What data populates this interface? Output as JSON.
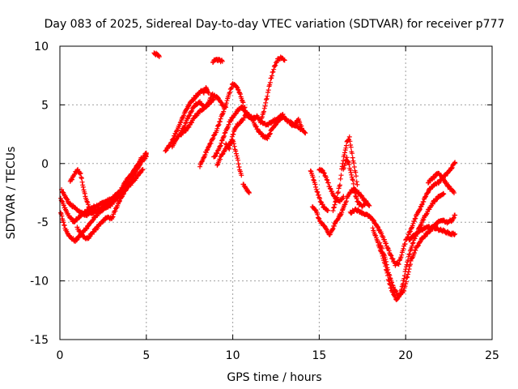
{
  "chart_data": {
    "type": "scatter",
    "title": "Day 083 of 2025, Sidereal Day-to-day VTEC variation (SDTVAR) for receiver p777",
    "xlabel": "GPS time / hours",
    "ylabel": "SDTVAR / TECUs",
    "xlim": [
      0,
      25
    ],
    "ylim": [
      -15,
      10
    ],
    "xticks": [
      0,
      5,
      10,
      15,
      20,
      25
    ],
    "yticks": [
      -15,
      -10,
      -5,
      0,
      5,
      10
    ],
    "xtick_labels": [
      "0",
      "5",
      "10",
      "15",
      "20",
      "25"
    ],
    "ytick_labels": [
      "-15",
      "-10",
      "-5",
      "0",
      "5",
      "10"
    ],
    "grid": true,
    "legend": "none",
    "marker": "+",
    "series_color": "#ff0000",
    "tracks": [
      {
        "name": "track-a",
        "points": [
          [
            0.05,
            -3.0
          ],
          [
            0.4,
            -4.2
          ],
          [
            0.8,
            -5.0
          ],
          [
            1.3,
            -4.3
          ],
          [
            1.8,
            -3.8
          ],
          [
            2.4,
            -3.4
          ],
          [
            3.0,
            -3.0
          ],
          [
            3.6,
            -2.2
          ],
          [
            4.1,
            -1.0
          ],
          [
            4.6,
            0.1
          ],
          [
            5.0,
            0.9
          ]
        ]
      },
      {
        "name": "track-b",
        "points": [
          [
            0.05,
            -4.2
          ],
          [
            0.3,
            -5.5
          ],
          [
            0.6,
            -6.3
          ],
          [
            0.9,
            -6.6
          ],
          [
            1.3,
            -5.9
          ],
          [
            1.8,
            -5.0
          ],
          [
            2.3,
            -4.1
          ],
          [
            2.9,
            -3.6
          ],
          [
            3.5,
            -2.6
          ],
          [
            4.0,
            -1.2
          ],
          [
            4.5,
            -0.2
          ],
          [
            5.0,
            0.6
          ]
        ]
      },
      {
        "name": "track-c",
        "points": [
          [
            0.1,
            -2.3
          ],
          [
            0.5,
            -3.3
          ],
          [
            1.0,
            -4.0
          ],
          [
            1.5,
            -4.4
          ],
          [
            2.0,
            -4.1
          ],
          [
            2.6,
            -3.7
          ],
          [
            3.1,
            -3.2
          ],
          [
            3.6,
            -2.5
          ],
          [
            4.2,
            -1.6
          ],
          [
            4.8,
            -0.5
          ]
        ]
      },
      {
        "name": "track-d",
        "points": [
          [
            0.6,
            -1.6
          ],
          [
            0.8,
            -1.0
          ],
          [
            1.0,
            -0.5
          ],
          [
            1.2,
            -0.9
          ],
          [
            1.35,
            -2.0
          ],
          [
            1.5,
            -3.0
          ],
          [
            1.8,
            -4.2
          ],
          [
            2.2,
            -4.0
          ],
          [
            2.8,
            -3.4
          ],
          [
            3.3,
            -2.8
          ],
          [
            3.9,
            -1.3
          ],
          [
            4.3,
            -0.8
          ],
          [
            4.7,
            0.5
          ]
        ]
      },
      {
        "name": "track-e",
        "points": [
          [
            1.0,
            -5.5
          ],
          [
            1.4,
            -6.3
          ],
          [
            1.6,
            -6.4
          ],
          [
            1.9,
            -5.9
          ],
          [
            2.3,
            -5.2
          ],
          [
            2.7,
            -4.6
          ],
          [
            3.0,
            -4.7
          ],
          [
            3.2,
            -4.0
          ],
          [
            3.5,
            -3.0
          ],
          [
            3.9,
            -2.0
          ],
          [
            4.3,
            -1.0
          ],
          [
            4.7,
            0.2
          ],
          [
            5.0,
            0.8
          ]
        ]
      },
      {
        "name": "track-f",
        "points": [
          [
            5.45,
            9.4
          ],
          [
            5.6,
            9.3
          ],
          [
            5.75,
            9.1
          ]
        ]
      },
      {
        "name": "track-g",
        "points": [
          [
            6.1,
            1.0
          ],
          [
            6.4,
            1.7
          ],
          [
            6.7,
            2.6
          ],
          [
            7.0,
            3.6
          ],
          [
            7.3,
            4.6
          ],
          [
            7.6,
            5.3
          ],
          [
            7.9,
            5.8
          ],
          [
            8.2,
            6.2
          ],
          [
            8.5,
            6.3
          ]
        ]
      },
      {
        "name": "track-h",
        "points": [
          [
            6.5,
            1.5
          ],
          [
            6.8,
            2.2
          ],
          [
            7.2,
            3.2
          ],
          [
            7.5,
            4.2
          ],
          [
            7.8,
            5.0
          ],
          [
            8.1,
            5.2
          ],
          [
            8.4,
            4.8
          ],
          [
            8.7,
            5.2
          ],
          [
            8.9,
            5.5
          ]
        ]
      },
      {
        "name": "track-i",
        "points": [
          [
            7.0,
            2.5
          ],
          [
            7.4,
            3.0
          ],
          [
            7.8,
            4.0
          ],
          [
            8.2,
            4.6
          ],
          [
            8.5,
            4.9
          ],
          [
            8.8,
            5.9
          ],
          [
            9.1,
            5.6
          ],
          [
            9.4,
            5.0
          ],
          [
            9.6,
            4.8
          ]
        ]
      },
      {
        "name": "track-j",
        "points": [
          [
            8.3,
            6.0
          ],
          [
            8.45,
            6.4
          ],
          [
            8.6,
            6.0
          ]
        ]
      },
      {
        "name": "track-k",
        "points": [
          [
            8.85,
            8.6
          ],
          [
            9.0,
            8.9
          ],
          [
            9.2,
            8.8
          ],
          [
            9.4,
            8.7
          ]
        ]
      },
      {
        "name": "track-l",
        "points": [
          [
            8.1,
            -0.2
          ],
          [
            8.4,
            0.8
          ],
          [
            8.7,
            1.7
          ],
          [
            9.0,
            2.6
          ],
          [
            9.3,
            3.8
          ],
          [
            9.6,
            5.0
          ],
          [
            9.8,
            6.0
          ],
          [
            10.0,
            6.8
          ],
          [
            10.2,
            6.6
          ],
          [
            10.4,
            6.0
          ],
          [
            10.6,
            5.2
          ]
        ]
      },
      {
        "name": "track-m",
        "points": [
          [
            8.9,
            0.5
          ],
          [
            9.2,
            1.2
          ],
          [
            9.5,
            2.4
          ],
          [
            9.8,
            3.5
          ],
          [
            10.1,
            4.2
          ],
          [
            10.4,
            4.7
          ],
          [
            10.7,
            4.8
          ]
        ]
      },
      {
        "name": "track-n",
        "points": [
          [
            9.1,
            -0.1
          ],
          [
            9.4,
            0.8
          ],
          [
            9.7,
            1.5
          ],
          [
            10.0,
            2.0
          ],
          [
            10.2,
            0.9
          ],
          [
            10.4,
            -0.5
          ],
          [
            10.5,
            -1.0
          ]
        ]
      },
      {
        "name": "track-o",
        "points": [
          [
            9.6,
            1.6
          ],
          [
            9.8,
            1.3
          ],
          [
            10.0,
            2.4
          ],
          [
            10.2,
            3.2
          ],
          [
            10.5,
            3.6
          ],
          [
            10.8,
            4.2
          ],
          [
            11.1,
            3.8
          ],
          [
            11.4,
            4.0
          ],
          [
            11.7,
            3.5
          ],
          [
            12.0,
            3.3
          ],
          [
            12.3,
            3.6
          ],
          [
            12.6,
            3.8
          ],
          [
            12.9,
            4.2
          ]
        ]
      },
      {
        "name": "track-p",
        "points": [
          [
            10.5,
            4.8
          ],
          [
            10.8,
            4.3
          ],
          [
            11.1,
            3.9
          ],
          [
            11.4,
            3.0
          ],
          [
            11.7,
            2.4
          ],
          [
            12.0,
            2.2
          ],
          [
            12.3,
            3.0
          ],
          [
            12.6,
            3.6
          ],
          [
            12.9,
            4.0
          ],
          [
            13.2,
            3.6
          ],
          [
            13.5,
            3.2
          ],
          [
            13.8,
            3.7
          ],
          [
            14.0,
            3.0
          ]
        ]
      },
      {
        "name": "track-q",
        "points": [
          [
            10.6,
            -1.7
          ],
          [
            10.8,
            -2.2
          ],
          [
            10.95,
            -2.5
          ]
        ]
      },
      {
        "name": "track-r",
        "points": [
          [
            11.6,
            3.5
          ],
          [
            11.8,
            4.5
          ],
          [
            12.0,
            5.8
          ],
          [
            12.2,
            7.2
          ],
          [
            12.4,
            8.2
          ],
          [
            12.6,
            8.9
          ],
          [
            12.8,
            9.0
          ],
          [
            13.0,
            8.8
          ]
        ]
      },
      {
        "name": "track-s",
        "points": [
          [
            13.3,
            3.6
          ],
          [
            13.6,
            3.2
          ],
          [
            13.9,
            3.0
          ],
          [
            14.2,
            2.6
          ]
        ]
      },
      {
        "name": "track-t",
        "points": [
          [
            14.5,
            -0.6
          ],
          [
            14.7,
            -1.5
          ],
          [
            14.9,
            -2.5
          ],
          [
            15.1,
            -3.3
          ],
          [
            15.3,
            -3.8
          ],
          [
            15.5,
            -4.0
          ]
        ]
      },
      {
        "name": "track-u",
        "points": [
          [
            14.6,
            -3.6
          ],
          [
            14.8,
            -4.0
          ],
          [
            15.0,
            -4.8
          ],
          [
            15.2,
            -5.2
          ],
          [
            15.4,
            -5.6
          ],
          [
            15.6,
            -6.1
          ],
          [
            15.8,
            -5.5
          ],
          [
            16.0,
            -4.9
          ],
          [
            16.2,
            -4.3
          ]
        ]
      },
      {
        "name": "track-v",
        "points": [
          [
            15.0,
            -0.5
          ],
          [
            15.2,
            -0.6
          ],
          [
            15.4,
            -1.2
          ],
          [
            15.6,
            -2.0
          ],
          [
            15.8,
            -2.6
          ],
          [
            16.0,
            -3.1
          ],
          [
            16.2,
            -3.2
          ],
          [
            16.4,
            -2.8
          ]
        ]
      },
      {
        "name": "track-w",
        "points": [
          [
            15.8,
            -4.0
          ],
          [
            16.0,
            -3.0
          ],
          [
            16.2,
            -1.8
          ],
          [
            16.3,
            -0.5
          ],
          [
            16.45,
            0.8
          ],
          [
            16.6,
            1.8
          ],
          [
            16.75,
            2.2
          ],
          [
            16.9,
            0.8
          ],
          [
            17.1,
            -0.8
          ],
          [
            17.2,
            -1.8
          ]
        ]
      },
      {
        "name": "track-x",
        "points": [
          [
            16.4,
            -0.5
          ],
          [
            16.6,
            0.5
          ],
          [
            16.8,
            -0.5
          ],
          [
            16.95,
            -1.5
          ],
          [
            17.1,
            -2.8
          ],
          [
            17.3,
            -3.5
          ],
          [
            17.5,
            -3.6
          ],
          [
            17.7,
            -3.4
          ]
        ]
      },
      {
        "name": "track-y",
        "points": [
          [
            16.2,
            -4.5
          ],
          [
            16.4,
            -3.8
          ],
          [
            16.6,
            -3.0
          ],
          [
            16.8,
            -2.4
          ],
          [
            17.0,
            -2.2
          ],
          [
            17.3,
            -2.5
          ],
          [
            17.6,
            -3.1
          ],
          [
            17.9,
            -3.6
          ]
        ]
      },
      {
        "name": "track-z",
        "points": [
          [
            16.8,
            -4.2
          ],
          [
            17.1,
            -3.9
          ],
          [
            17.5,
            -4.2
          ],
          [
            17.9,
            -4.5
          ],
          [
            18.3,
            -5.2
          ],
          [
            18.6,
            -6.0
          ],
          [
            18.9,
            -7.0
          ],
          [
            19.2,
            -8.0
          ],
          [
            19.4,
            -8.6
          ],
          [
            19.6,
            -8.5
          ],
          [
            19.8,
            -7.6
          ],
          [
            20.0,
            -6.6
          ],
          [
            20.3,
            -5.6
          ],
          [
            20.6,
            -4.5
          ],
          [
            20.9,
            -3.6
          ],
          [
            21.2,
            -2.6
          ],
          [
            21.5,
            -2.0
          ],
          [
            21.9,
            -1.6
          ],
          [
            22.3,
            -1.0
          ],
          [
            22.6,
            -0.5
          ],
          [
            22.85,
            0.1
          ]
        ]
      },
      {
        "name": "track-aa",
        "points": [
          [
            18.1,
            -5.5
          ],
          [
            18.4,
            -6.8
          ],
          [
            18.7,
            -8.0
          ],
          [
            18.9,
            -9.2
          ],
          [
            19.1,
            -10.4
          ],
          [
            19.3,
            -11.2
          ],
          [
            19.5,
            -11.6
          ],
          [
            19.7,
            -11.0
          ],
          [
            19.85,
            -10.2
          ],
          [
            20.0,
            -9.0
          ],
          [
            20.2,
            -7.8
          ],
          [
            20.4,
            -6.8
          ],
          [
            20.7,
            -5.8
          ],
          [
            21.0,
            -4.8
          ],
          [
            21.3,
            -4.0
          ],
          [
            21.6,
            -3.3
          ],
          [
            21.9,
            -2.8
          ],
          [
            22.2,
            -2.6
          ]
        ]
      },
      {
        "name": "track-ab",
        "points": [
          [
            18.5,
            -6.8
          ],
          [
            18.8,
            -8.0
          ],
          [
            19.0,
            -9.3
          ],
          [
            19.3,
            -10.6
          ],
          [
            19.6,
            -11.3
          ],
          [
            19.9,
            -10.8
          ],
          [
            20.1,
            -9.6
          ],
          [
            20.3,
            -8.3
          ],
          [
            20.6,
            -7.2
          ],
          [
            20.9,
            -6.5
          ],
          [
            21.2,
            -6.0
          ],
          [
            21.5,
            -5.6
          ],
          [
            21.8,
            -5.1
          ],
          [
            22.1,
            -4.8
          ],
          [
            22.4,
            -5.0
          ],
          [
            22.7,
            -4.8
          ],
          [
            22.85,
            -4.4
          ]
        ]
      },
      {
        "name": "track-ac",
        "points": [
          [
            20.2,
            -6.5
          ],
          [
            20.5,
            -6.1
          ],
          [
            20.8,
            -5.8
          ],
          [
            21.1,
            -5.5
          ],
          [
            21.5,
            -5.4
          ],
          [
            21.9,
            -5.6
          ],
          [
            22.3,
            -5.8
          ],
          [
            22.6,
            -6.0
          ],
          [
            22.85,
            -6.0
          ]
        ]
      },
      {
        "name": "track-ad",
        "points": [
          [
            21.3,
            -1.6
          ],
          [
            21.6,
            -1.2
          ],
          [
            21.9,
            -0.8
          ],
          [
            22.2,
            -1.4
          ],
          [
            22.5,
            -2.0
          ],
          [
            22.8,
            -2.5
          ]
        ]
      }
    ]
  }
}
